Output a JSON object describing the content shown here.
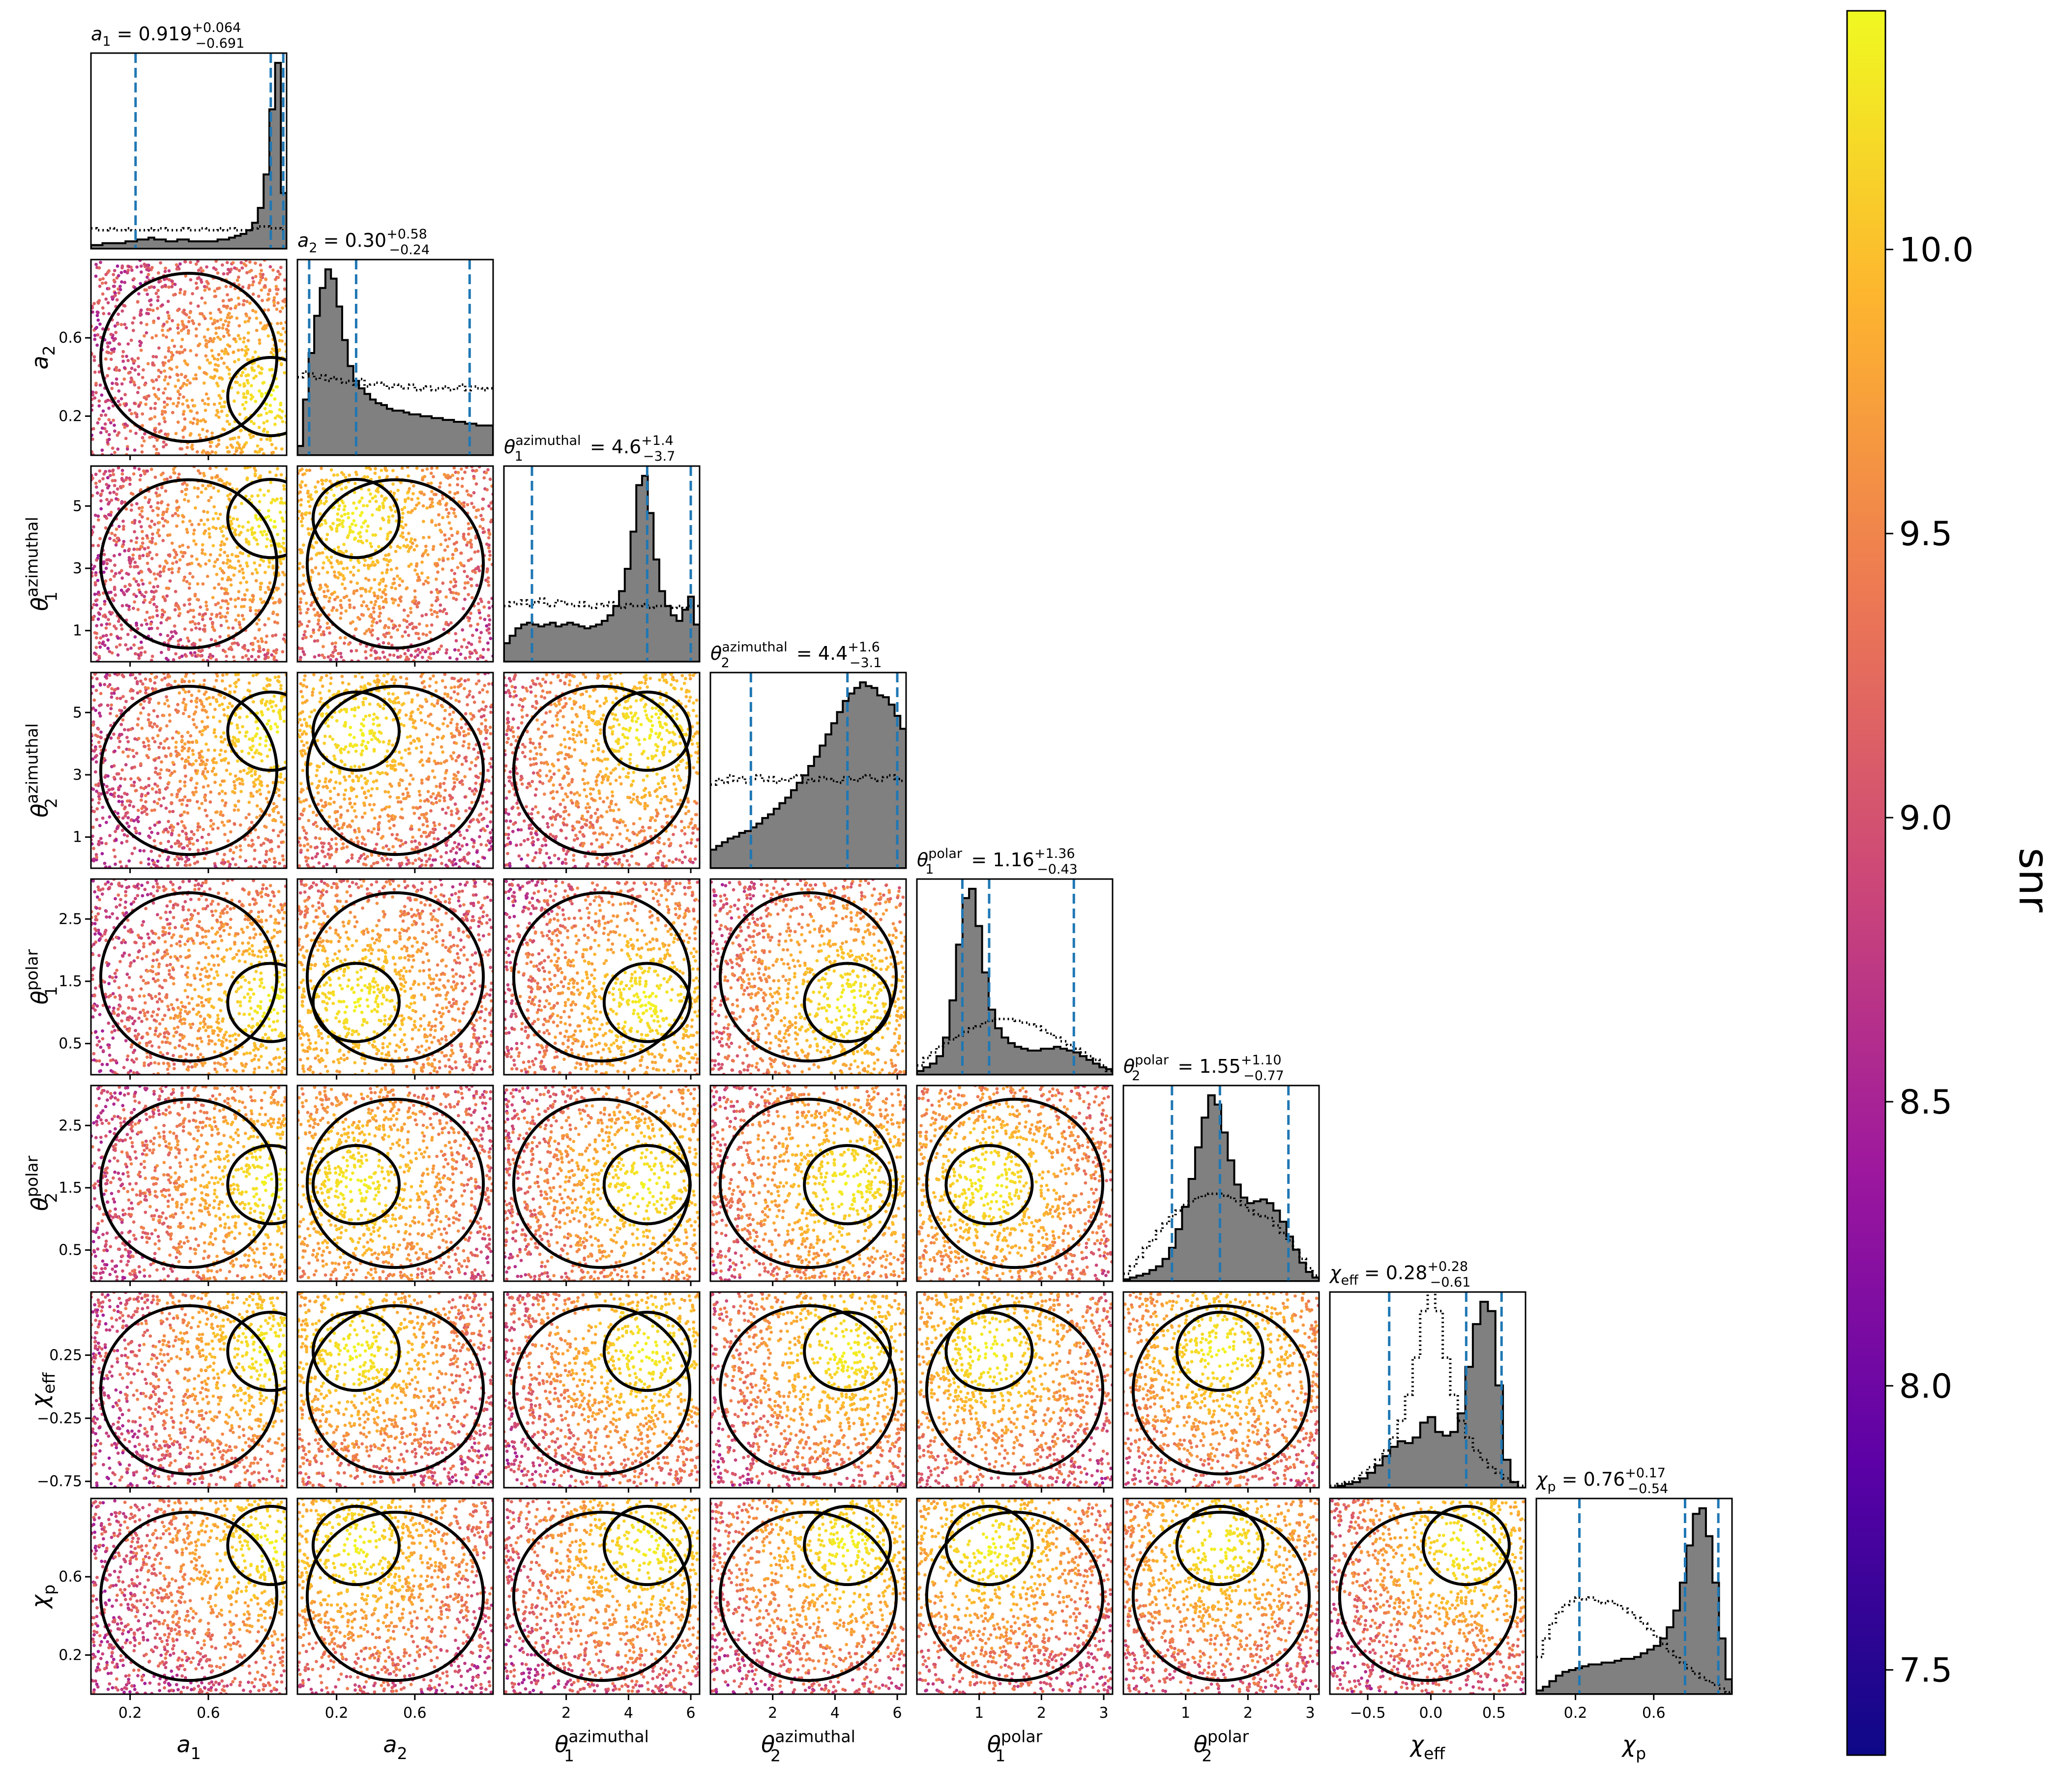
{
  "figure": {
    "colorbar": {
      "label": "snr",
      "range": [
        7.35,
        10.42
      ],
      "ticks": [
        "7.5",
        "8.0",
        "8.5",
        "9.0",
        "9.5",
        "10.0"
      ],
      "colormap": [
        "#0d0887",
        "#5c01a6",
        "#9c179e",
        "#cc4778",
        "#ed7953",
        "#fdb42f",
        "#f0f921"
      ]
    },
    "colors": {
      "hist_fill": "#808080",
      "quantile_line": "#1f77b4",
      "contour": "#000000",
      "prior": "#000000"
    }
  },
  "chart_data": {
    "type": "corner",
    "parameters": [
      {
        "key": "a1",
        "label": "a",
        "sub": "1",
        "sup": "",
        "range": [
          0,
          1
        ],
        "ticks": [
          0.2,
          0.6
        ],
        "tick_labels": [
          "0.2",
          "0.6"
        ],
        "median": 0.919,
        "plus": 0.064,
        "minus": 0.691,
        "title_value": "0.919",
        "title_plus": "+0.064",
        "title_minus": "−0.691",
        "hist": [
          0.02,
          0.02,
          0.03,
          0.03,
          0.03,
          0.03,
          0.04,
          0.04,
          0.05,
          0.05,
          0.06,
          0.05,
          0.05,
          0.04,
          0.04,
          0.05,
          0.05,
          0.04,
          0.04,
          0.04,
          0.04,
          0.04,
          0.05,
          0.05,
          0.06,
          0.07,
          0.08,
          0.1,
          0.14,
          0.22,
          0.4,
          0.75,
          1.0,
          0.3
        ],
        "prior": [
          0.11,
          0.1,
          0.1,
          0.11,
          0.1,
          0.1,
          0.11,
          0.1,
          0.1,
          0.1,
          0.11,
          0.1,
          0.11,
          0.1,
          0.1,
          0.1,
          0.11,
          0.1,
          0.1,
          0.11,
          0.1,
          0.1,
          0.11,
          0.1,
          0.11,
          0.1,
          0.1,
          0.1,
          0.11,
          0.12,
          0.12,
          0.11,
          0.11,
          0.1
        ]
      },
      {
        "key": "a2",
        "label": "a",
        "sub": "2",
        "sup": "",
        "range": [
          0,
          1
        ],
        "ticks": [
          0.2,
          0.6
        ],
        "tick_labels": [
          "0.2",
          "0.6"
        ],
        "median": 0.3,
        "plus": 0.58,
        "minus": 0.24,
        "title_value": "0.30",
        "title_plus": "+0.58",
        "title_minus": "−0.24",
        "hist": [
          0.05,
          0.3,
          0.55,
          0.75,
          0.9,
          1.0,
          0.95,
          0.8,
          0.62,
          0.48,
          0.4,
          0.36,
          0.33,
          0.3,
          0.28,
          0.27,
          0.25,
          0.24,
          0.24,
          0.23,
          0.22,
          0.22,
          0.21,
          0.21,
          0.2,
          0.2,
          0.19,
          0.19,
          0.18,
          0.18,
          0.17,
          0.17,
          0.16,
          0.16,
          0.16
        ],
        "prior": [
          0.42,
          0.45,
          0.44,
          0.41,
          0.43,
          0.4,
          0.42,
          0.41,
          0.39,
          0.4,
          0.38,
          0.41,
          0.37,
          0.38,
          0.39,
          0.38,
          0.36,
          0.38,
          0.37,
          0.36,
          0.38,
          0.35,
          0.36,
          0.37,
          0.35,
          0.36,
          0.37,
          0.35,
          0.36,
          0.38,
          0.35,
          0.37,
          0.36,
          0.35,
          0.36
        ]
      },
      {
        "key": "t1az",
        "label": "θ",
        "sub": "1",
        "sup": "azimuthal",
        "range": [
          0,
          6.283
        ],
        "ticks": [
          2,
          4,
          6
        ],
        "tick_labels": [
          "2",
          "4",
          "6"
        ],
        "yticks": [
          1,
          3,
          5
        ],
        "ytick_labels": [
          "1",
          "3",
          "5"
        ],
        "median": 4.6,
        "plus": 1.4,
        "minus": 3.7,
        "title_value": "4.6",
        "title_plus": "+1.4",
        "title_minus": "−3.7",
        "hist": [
          0.1,
          0.14,
          0.18,
          0.2,
          0.21,
          0.2,
          0.19,
          0.2,
          0.21,
          0.19,
          0.2,
          0.21,
          0.2,
          0.19,
          0.18,
          0.19,
          0.2,
          0.22,
          0.25,
          0.3,
          0.38,
          0.5,
          0.7,
          0.95,
          1.0,
          0.8,
          0.55,
          0.38,
          0.3,
          0.25,
          0.22,
          0.28,
          0.35,
          0.2
        ],
        "prior": [
          0.3,
          0.32,
          0.31,
          0.33,
          0.3,
          0.32,
          0.34,
          0.31,
          0.3,
          0.33,
          0.32,
          0.31,
          0.3,
          0.32,
          0.3,
          0.29,
          0.31,
          0.3,
          0.32,
          0.3,
          0.29,
          0.31,
          0.3,
          0.3,
          0.31,
          0.29,
          0.3,
          0.3,
          0.3,
          0.29,
          0.3,
          0.29,
          0.3,
          0.3
        ]
      },
      {
        "key": "t2az",
        "label": "θ",
        "sub": "2",
        "sup": "azimuthal",
        "range": [
          0,
          6.283
        ],
        "ticks": [
          2,
          4,
          6
        ],
        "tick_labels": [
          "2",
          "4",
          "6"
        ],
        "yticks": [
          1,
          3,
          5
        ],
        "ytick_labels": [
          "1",
          "3",
          "5"
        ],
        "median": 4.4,
        "plus": 1.6,
        "minus": 3.1,
        "title_value": "4.4",
        "title_plus": "+1.6",
        "title_minus": "−3.1",
        "hist": [
          0.1,
          0.12,
          0.14,
          0.16,
          0.17,
          0.19,
          0.2,
          0.22,
          0.24,
          0.27,
          0.29,
          0.32,
          0.35,
          0.38,
          0.42,
          0.46,
          0.5,
          0.55,
          0.6,
          0.66,
          0.72,
          0.78,
          0.84,
          0.9,
          0.94,
          0.97,
          1.0,
          0.98,
          0.97,
          0.93,
          0.92,
          0.88,
          0.82,
          0.75
        ],
        "prior": [
          0.45,
          0.48,
          0.46,
          0.5,
          0.47,
          0.49,
          0.46,
          0.48,
          0.5,
          0.47,
          0.49,
          0.46,
          0.48,
          0.47,
          0.49,
          0.5,
          0.46,
          0.48,
          0.47,
          0.49,
          0.48,
          0.47,
          0.46,
          0.49,
          0.48,
          0.47,
          0.49,
          0.5,
          0.48,
          0.47,
          0.49,
          0.5,
          0.48,
          0.47
        ]
      },
      {
        "key": "t1po",
        "label": "θ",
        "sub": "1",
        "sup": "polar",
        "range": [
          0,
          3.1416
        ],
        "ticks": [
          1,
          2,
          3
        ],
        "tick_labels": [
          "1",
          "2",
          "3"
        ],
        "yticks": [
          0.5,
          1.5,
          2.5
        ],
        "ytick_labels": [
          "0.5",
          "1.5",
          "2.5"
        ],
        "median": 1.16,
        "plus": 1.36,
        "minus": 0.43,
        "title_value": "1.16",
        "title_plus": "+1.36",
        "title_minus": "−0.43",
        "hist": [
          0.02,
          0.04,
          0.06,
          0.1,
          0.2,
          0.4,
          0.7,
          0.95,
          1.0,
          0.8,
          0.55,
          0.35,
          0.25,
          0.2,
          0.17,
          0.15,
          0.14,
          0.13,
          0.13,
          0.14,
          0.14,
          0.15,
          0.14,
          0.13,
          0.12,
          0.1,
          0.08,
          0.06,
          0.04,
          0.03
        ],
        "prior": [
          0.05,
          0.09,
          0.12,
          0.15,
          0.17,
          0.19,
          0.21,
          0.23,
          0.25,
          0.26,
          0.28,
          0.29,
          0.3,
          0.3,
          0.3,
          0.29,
          0.28,
          0.27,
          0.26,
          0.24,
          0.22,
          0.2,
          0.18,
          0.16,
          0.14,
          0.12,
          0.1,
          0.08,
          0.05,
          0.02
        ]
      },
      {
        "key": "t2po",
        "label": "θ",
        "sub": "2",
        "sup": "polar",
        "range": [
          0,
          3.1416
        ],
        "ticks": [
          1,
          2,
          3
        ],
        "tick_labels": [
          "1",
          "2",
          "3"
        ],
        "yticks": [
          0.5,
          1.5,
          2.5
        ],
        "ytick_labels": [
          "0.5",
          "1.5",
          "2.5"
        ],
        "median": 1.55,
        "plus": 1.1,
        "minus": 0.77,
        "title_value": "1.55",
        "title_plus": "+1.10",
        "title_minus": "−0.77",
        "hist": [
          0.01,
          0.02,
          0.03,
          0.04,
          0.06,
          0.08,
          0.12,
          0.18,
          0.28,
          0.4,
          0.55,
          0.72,
          0.88,
          1.0,
          0.95,
          0.8,
          0.65,
          0.52,
          0.45,
          0.42,
          0.43,
          0.44,
          0.42,
          0.38,
          0.32,
          0.24,
          0.17,
          0.1,
          0.05,
          0.02
        ],
        "prior": [
          0.04,
          0.08,
          0.13,
          0.18,
          0.22,
          0.27,
          0.31,
          0.35,
          0.38,
          0.41,
          0.43,
          0.45,
          0.46,
          0.47,
          0.47,
          0.46,
          0.45,
          0.43,
          0.41,
          0.38,
          0.36,
          0.35,
          0.34,
          0.3,
          0.26,
          0.22,
          0.17,
          0.12,
          0.07,
          0.03
        ]
      },
      {
        "key": "chieff",
        "label": "χ",
        "sub": "eff",
        "sup": "",
        "range": [
          -0.8,
          0.75
        ],
        "ticks": [
          -0.5,
          0.0,
          0.5
        ],
        "tick_labels": [
          "−0.5",
          "0.0",
          "0.5"
        ],
        "yticks": [
          -0.75,
          -0.25,
          0.25
        ],
        "ytick_labels": [
          "−0.75",
          "−0.25",
          "0.25"
        ],
        "median": 0.28,
        "plus": 0.28,
        "minus": 0.61,
        "title_value": "0.28",
        "title_plus": "+0.28",
        "title_minus": "−0.61",
        "hist": [
          0.0,
          0.01,
          0.02,
          0.03,
          0.05,
          0.08,
          0.12,
          0.17,
          0.22,
          0.25,
          0.24,
          0.27,
          0.35,
          0.38,
          0.3,
          0.28,
          0.3,
          0.4,
          0.65,
          0.88,
          1.0,
          0.95,
          0.55,
          0.15,
          0.03,
          0.0
        ],
        "prior": [
          0.01,
          0.02,
          0.03,
          0.05,
          0.08,
          0.11,
          0.15,
          0.2,
          0.27,
          0.36,
          0.5,
          0.7,
          0.95,
          1.1,
          0.95,
          0.7,
          0.5,
          0.36,
          0.27,
          0.2,
          0.15,
          0.11,
          0.08,
          0.05,
          0.03,
          0.01
        ]
      },
      {
        "key": "chip",
        "label": "χ",
        "sub": "p",
        "sup": "",
        "range": [
          0,
          1
        ],
        "ticks": [
          0.2,
          0.6
        ],
        "tick_labels": [
          "0.2",
          "0.6"
        ],
        "median": 0.76,
        "plus": 0.17,
        "minus": 0.54,
        "title_value": "0.76",
        "title_plus": "+0.17",
        "title_minus": "−0.54",
        "hist": [
          0.02,
          0.04,
          0.07,
          0.1,
          0.12,
          0.13,
          0.14,
          0.15,
          0.16,
          0.16,
          0.17,
          0.17,
          0.18,
          0.19,
          0.19,
          0.2,
          0.22,
          0.24,
          0.26,
          0.3,
          0.36,
          0.45,
          0.6,
          0.8,
          0.97,
          1.0,
          0.85,
          0.6,
          0.3,
          0.08
        ],
        "prior": [
          0.2,
          0.3,
          0.38,
          0.44,
          0.48,
          0.5,
          0.52,
          0.51,
          0.52,
          0.5,
          0.49,
          0.5,
          0.48,
          0.46,
          0.44,
          0.41,
          0.38,
          0.35,
          0.31,
          0.27,
          0.23,
          0.2,
          0.17,
          0.14,
          0.11,
          0.09,
          0.07,
          0.05,
          0.03,
          0.01
        ]
      }
    ]
  }
}
